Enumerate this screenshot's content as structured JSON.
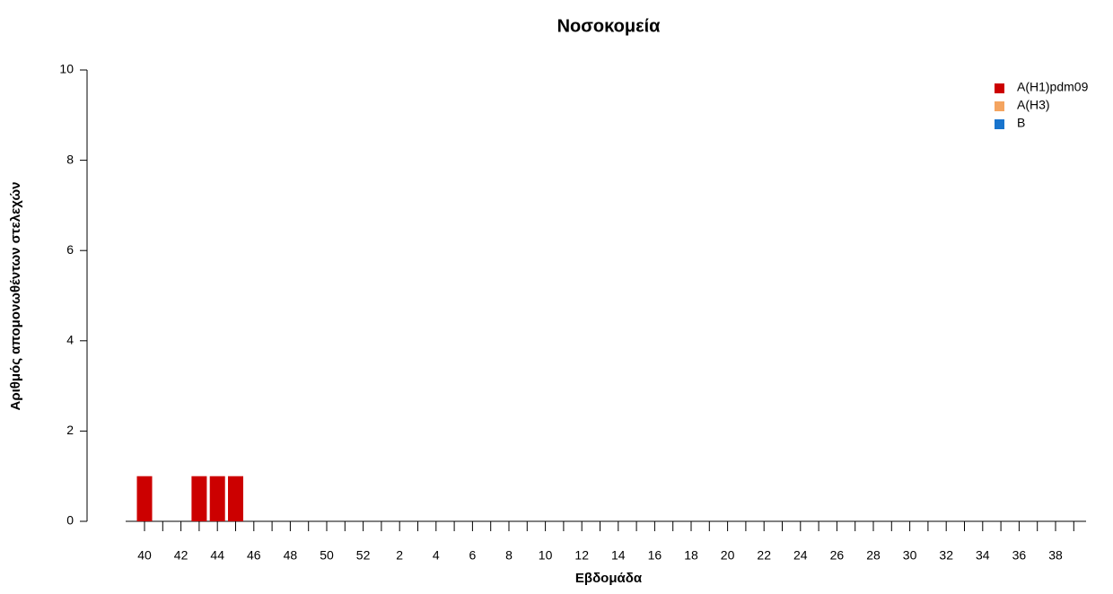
{
  "chart_data": {
    "type": "bar",
    "stacked": true,
    "title": "Νοσοκομεία",
    "x_label": "Εβδομάδα",
    "y_label": "Αριθμός απομονωθέντων στελεχών",
    "categories": [
      40,
      null,
      42,
      null,
      44,
      null,
      46,
      null,
      48,
      null,
      50,
      null,
      52,
      null,
      2,
      null,
      4,
      null,
      6,
      null,
      8,
      null,
      10,
      null,
      12,
      null,
      14,
      null,
      16,
      null,
      18,
      null,
      20,
      null,
      22,
      null,
      24,
      null,
      26,
      null,
      28,
      null,
      30,
      null,
      32,
      null,
      34,
      null,
      36,
      null,
      38,
      null
    ],
    "series": [
      {
        "name": "A(H1)pdm09",
        "color": "#cc0000",
        "values": [
          1,
          0,
          0,
          1,
          1,
          1,
          0,
          0,
          0,
          0,
          0,
          0,
          0,
          0,
          0,
          0,
          0,
          0,
          0,
          0,
          0,
          0,
          0,
          0,
          0,
          0,
          0,
          0,
          0,
          0,
          0,
          0,
          0,
          0,
          0,
          0,
          0,
          0,
          0,
          0,
          0,
          0,
          0,
          0,
          0,
          0,
          0,
          0,
          0,
          0,
          0,
          0
        ]
      },
      {
        "name": "A(H3)",
        "color": "#f4a460",
        "values": [
          0,
          0,
          0,
          0,
          0,
          0,
          0,
          0,
          0,
          0,
          0,
          0,
          0,
          0,
          0,
          0,
          0,
          0,
          0,
          0,
          0,
          0,
          0,
          0,
          0,
          0,
          0,
          0,
          0,
          0,
          0,
          0,
          0,
          0,
          0,
          0,
          0,
          0,
          0,
          0,
          0,
          0,
          0,
          0,
          0,
          0,
          0,
          0,
          0,
          0,
          0,
          0
        ]
      },
      {
        "name": "B",
        "color": "#1874cd",
        "values": [
          0,
          0,
          0,
          0,
          0,
          0,
          0,
          0,
          0,
          0,
          0,
          0,
          0,
          0,
          0,
          0,
          0,
          0,
          0,
          0,
          0,
          0,
          0,
          0,
          0,
          0,
          0,
          0,
          0,
          0,
          0,
          0,
          0,
          0,
          0,
          0,
          0,
          0,
          0,
          0,
          0,
          0,
          0,
          0,
          0,
          0,
          0,
          0,
          0,
          0,
          0,
          0
        ]
      }
    ],
    "ylim": [
      0,
      10
    ],
    "yticks": [
      0,
      2,
      4,
      6,
      8,
      10
    ],
    "legend": "top-right"
  }
}
